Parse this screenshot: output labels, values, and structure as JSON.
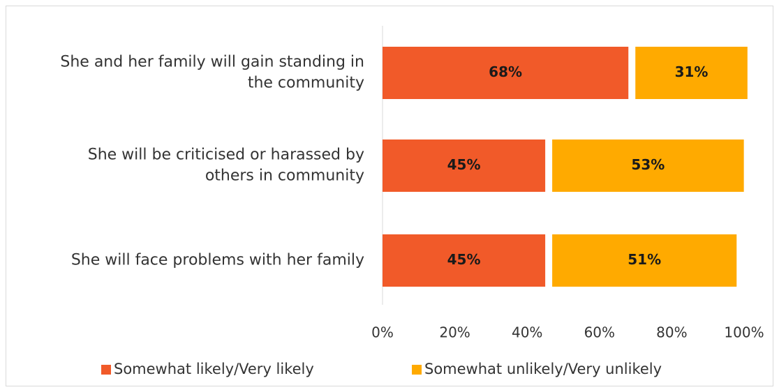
{
  "chart_data": {
    "type": "bar",
    "orientation": "horizontal",
    "stacked": true,
    "categories": [
      "She and her family will gain standing in the community",
      "She will be criticised or harassed by others in community",
      "She will face problems with her family"
    ],
    "category_lines": [
      [
        "She and her family will gain standing in",
        "the community"
      ],
      [
        "She will be criticised or harassed by",
        "others in community"
      ],
      [
        "She will face problems with her family"
      ]
    ],
    "series": [
      {
        "name": "Somewhat likely/Very likely",
        "color": "#F15A29",
        "values": [
          68,
          45,
          45
        ],
        "labels": [
          "68%",
          "45%",
          "45%"
        ]
      },
      {
        "name": "Somewhat unlikely/Very unlikely",
        "color": "#FFAA00",
        "values": [
          31,
          53,
          51
        ],
        "labels": [
          "31%",
          "53%",
          "51%"
        ]
      }
    ],
    "xlim": [
      0,
      100
    ],
    "xticks": [
      "0%",
      "20%",
      "40%",
      "60%",
      "80%",
      "100%"
    ],
    "grid": false,
    "legend_position": "bottom"
  }
}
